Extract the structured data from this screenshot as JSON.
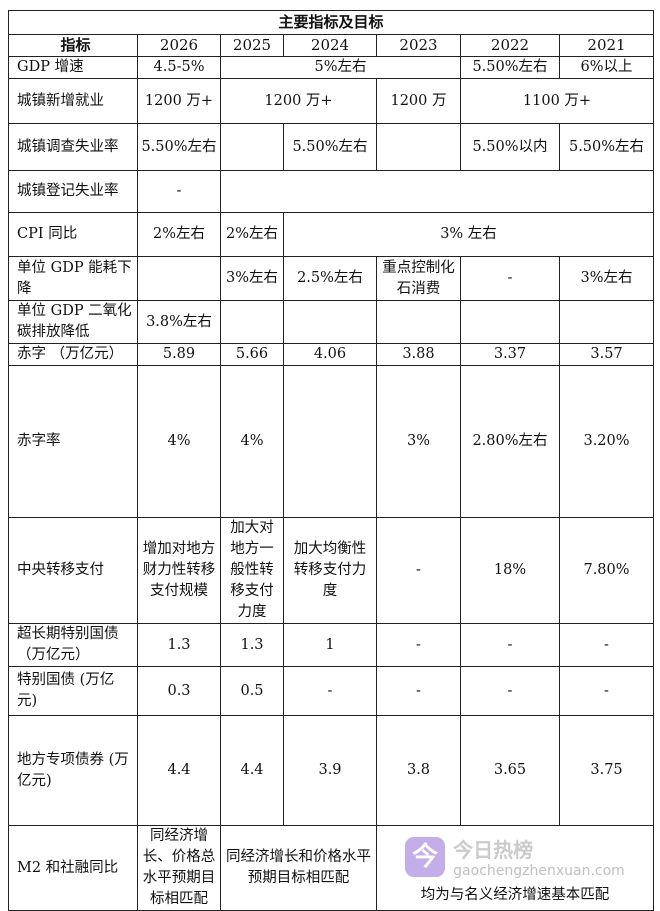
{
  "table": {
    "title": "主要指标及目标",
    "header": [
      "指标",
      "2026",
      "2025",
      "2024",
      "2023",
      "2022",
      "2021"
    ],
    "rows": [
      {
        "label": "GDP 增速",
        "cells": [
          {
            "v": "4.5-5%"
          },
          {
            "v": "5%左右",
            "span": 3
          },
          {
            "v": "5.50%左右"
          },
          {
            "v": "6%以上"
          }
        ]
      },
      {
        "label": "城镇新增就业",
        "cells": [
          {
            "v": "1200 万+"
          },
          {
            "v": "1200 万+",
            "span": 2
          },
          {
            "v": "1200 万"
          },
          {
            "v": "1100 万+",
            "span": 2
          }
        ]
      },
      {
        "label": "城镇调查失业率",
        "cells": [
          {
            "v": "5.50%左右"
          },
          {
            "v": ""
          },
          {
            "v": "5.50%左右"
          },
          {
            "v": ""
          },
          {
            "v": "5.50%以内"
          },
          {
            "v": "5.50%左右"
          }
        ]
      },
      {
        "label": "城镇登记失业率",
        "cells": [
          {
            "v": "-"
          },
          {
            "v": "",
            "span": 5
          }
        ]
      },
      {
        "label": "CPI 同比",
        "cells": [
          {
            "v": "2%左右"
          },
          {
            "v": "2%左右"
          },
          {
            "v": "3% 左右",
            "span": 4
          }
        ]
      },
      {
        "label": "单位 GDP 能耗下降",
        "cells": [
          {
            "v": ""
          },
          {
            "v": "3%左右"
          },
          {
            "v": "2.5%左右"
          },
          {
            "v": "重点控制化石消费"
          },
          {
            "v": "-"
          },
          {
            "v": "3%左右"
          }
        ]
      },
      {
        "label": "单位 GDP 二氧化碳排放降低",
        "cells": [
          {
            "v": "3.8%左右"
          },
          {
            "v": ""
          },
          {
            "v": ""
          },
          {
            "v": ""
          },
          {
            "v": ""
          },
          {
            "v": ""
          }
        ]
      },
      {
        "label": "赤字 （万亿元）",
        "cells": [
          {
            "v": "5.89"
          },
          {
            "v": "5.66"
          },
          {
            "v": "4.06"
          },
          {
            "v": "3.88"
          },
          {
            "v": "3.37"
          },
          {
            "v": "3.57"
          }
        ]
      },
      {
        "label": "赤字率",
        "cells": [
          {
            "v": "4%"
          },
          {
            "v": "4%"
          },
          {
            "v": ""
          },
          {
            "v": "3%"
          },
          {
            "v": "2.80%左右"
          },
          {
            "v": "3.20%"
          }
        ]
      },
      {
        "label": "中央转移支付",
        "cells": [
          {
            "v": "增加对地方财力性转移支付规模"
          },
          {
            "v": "加大对地方一般性转移支付力度"
          },
          {
            "v": "加大均衡性转移支付力度"
          },
          {
            "v": "-"
          },
          {
            "v": "18%"
          },
          {
            "v": "7.80%"
          }
        ]
      },
      {
        "label": "超长期特别国债 （万亿元）",
        "cells": [
          {
            "v": "1.3"
          },
          {
            "v": "1.3"
          },
          {
            "v": "1"
          },
          {
            "v": "-"
          },
          {
            "v": "-"
          },
          {
            "v": "-"
          }
        ]
      },
      {
        "label": "特别国债 (万亿元)",
        "cells": [
          {
            "v": "0.3"
          },
          {
            "v": "0.5"
          },
          {
            "v": "-"
          },
          {
            "v": "-"
          },
          {
            "v": "-"
          },
          {
            "v": "-"
          }
        ]
      },
      {
        "label": "地方专项债券 (万亿元)",
        "cells": [
          {
            "v": "4.4"
          },
          {
            "v": "4.4"
          },
          {
            "v": "3.9"
          },
          {
            "v": "3.8"
          },
          {
            "v": "3.65"
          },
          {
            "v": "3.75"
          }
        ]
      },
      {
        "label": "M2 和社融同比",
        "cells": [
          {
            "v": "同经济增长、价格总水平预期目标相匹配"
          },
          {
            "v": "同经济增长和价格水平预期目标相匹配",
            "span": 2
          },
          {
            "v": "均为与名义经济增速基本匹配",
            "span": 3
          }
        ]
      }
    ]
  },
  "watermark": {
    "logo_char": "今",
    "name": "今日热榜",
    "url": "gaochengzhenxuan.com"
  }
}
